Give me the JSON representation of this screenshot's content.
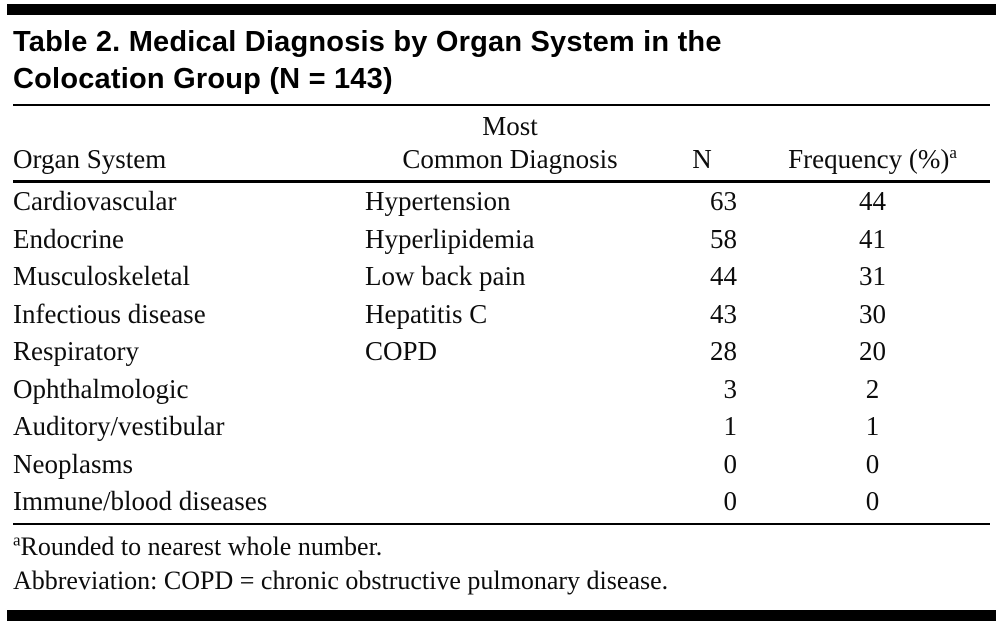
{
  "table": {
    "title_line1": "Table 2. Medical Diagnosis by Organ System in the",
    "title_line2": "Colocation Group (N = 143)",
    "header": {
      "organ_system": "Organ System",
      "diagnosis_line1": "Most",
      "diagnosis_line2": "Common Diagnosis",
      "n": "N",
      "frequency": "Frequency (%)",
      "frequency_superscript": "a"
    },
    "rows": [
      {
        "organ_system": "Cardiovascular",
        "diagnosis": "Hypertension",
        "n": "63",
        "frequency": "44"
      },
      {
        "organ_system": "Endocrine",
        "diagnosis": "Hyperlipidemia",
        "n": "58",
        "frequency": "41"
      },
      {
        "organ_system": "Musculoskeletal",
        "diagnosis": "Low back pain",
        "n": "44",
        "frequency": "31"
      },
      {
        "organ_system": "Infectious disease",
        "diagnosis": "Hepatitis C",
        "n": "43",
        "frequency": "30"
      },
      {
        "organ_system": "Respiratory",
        "diagnosis": "COPD",
        "n": "28",
        "frequency": "20"
      },
      {
        "organ_system": "Ophthalmologic",
        "diagnosis": "",
        "n": "3",
        "frequency": "2"
      },
      {
        "organ_system": "Auditory/vestibular",
        "diagnosis": "",
        "n": "1",
        "frequency": "1"
      },
      {
        "organ_system": "Neoplasms",
        "diagnosis": "",
        "n": "0",
        "frequency": "0"
      },
      {
        "organ_system": "Immune/blood diseases",
        "diagnosis": "",
        "n": "0",
        "frequency": "0"
      }
    ],
    "footnotes": [
      {
        "marker": "a",
        "text": "Rounded to nearest whole number."
      },
      {
        "marker": "",
        "text": "Abbreviation: COPD = chronic obstructive pulmonary disease."
      }
    ]
  }
}
